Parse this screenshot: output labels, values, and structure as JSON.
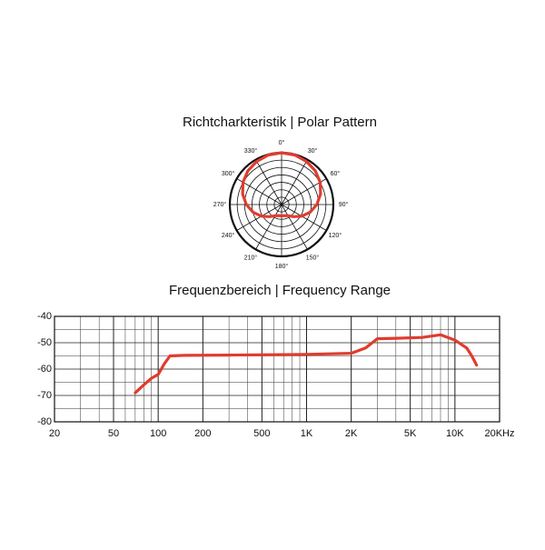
{
  "chart_data": [
    {
      "type": "polar",
      "title": "Richtcharkteristik  |  Polar Pattern",
      "x": [
        0,
        15,
        30,
        45,
        60,
        75,
        90,
        105,
        120,
        135,
        150,
        165,
        180,
        195,
        210,
        225,
        240,
        255,
        270,
        285,
        300,
        315,
        330,
        345
      ],
      "values": [
        1.0,
        0.99,
        0.96,
        0.92,
        0.86,
        0.78,
        0.68,
        0.57,
        0.45,
        0.33,
        0.25,
        0.22,
        0.22,
        0.22,
        0.25,
        0.33,
        0.45,
        0.57,
        0.68,
        0.78,
        0.86,
        0.92,
        0.96,
        0.99
      ],
      "color": "#e03c2e",
      "rlim": [
        0,
        1
      ],
      "xticks": [
        {
          "value": 0,
          "label": "0°"
        },
        {
          "value": 30,
          "label": "30°"
        },
        {
          "value": 60,
          "label": "60°"
        },
        {
          "value": 90,
          "label": "90°"
        },
        {
          "value": 120,
          "label": "120°"
        },
        {
          "value": 150,
          "label": "150°"
        },
        {
          "value": 180,
          "label": "180°"
        },
        {
          "value": 210,
          "label": "210°"
        },
        {
          "value": 240,
          "label": "240°"
        },
        {
          "value": 270,
          "label": "270°"
        },
        {
          "value": 300,
          "label": "300°"
        },
        {
          "value": 330,
          "label": "330°"
        }
      ]
    },
    {
      "type": "line",
      "title": "Frequenzbereich  |  Frequency Range",
      "x": [
        70,
        80,
        90,
        100,
        110,
        120,
        150,
        300,
        1000,
        2000,
        2500,
        3000,
        4000,
        6000,
        8000,
        10000,
        12000,
        13000,
        14000
      ],
      "values": [
        -69,
        -66,
        -63.5,
        -62,
        -58,
        -55,
        -54.8,
        -54.7,
        -54.4,
        -54,
        -52,
        -48.5,
        -48.3,
        -48,
        -47,
        -49,
        -52,
        -55,
        -58.5
      ],
      "color": "#e03c2e",
      "log_x": true,
      "grid": true,
      "xlim": [
        20,
        20000
      ],
      "xticks": [
        20,
        50,
        100,
        200,
        500,
        {
          "value": 1000,
          "label": "1K"
        },
        {
          "value": 2000,
          "label": "2K"
        },
        {
          "value": 5000,
          "label": "5K"
        },
        {
          "value": 10000,
          "label": "10K"
        },
        {
          "value": 20000,
          "label": "20KHz"
        }
      ],
      "ylim": [
        -80,
        -40
      ],
      "yticks": [
        -40,
        -50,
        -60,
        -70,
        -80
      ]
    }
  ]
}
